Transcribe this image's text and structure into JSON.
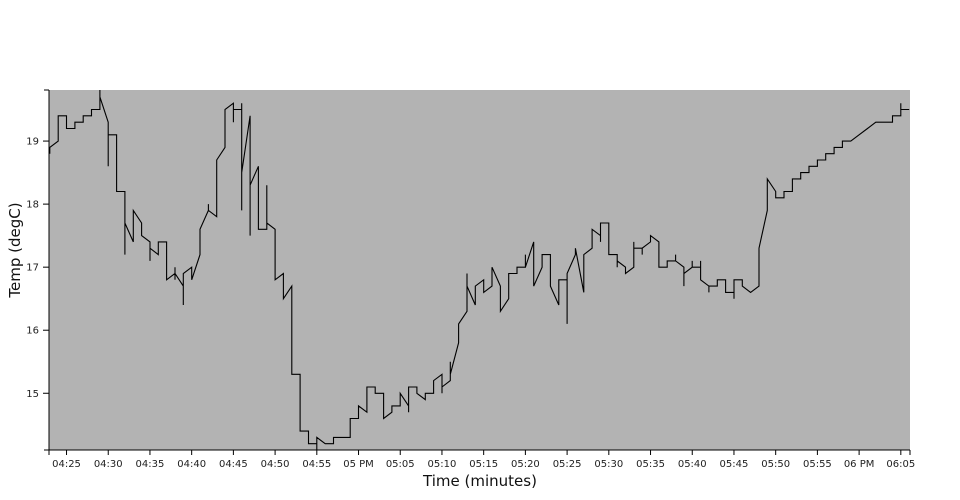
{
  "chart_data": {
    "type": "line",
    "title": "",
    "xlabel": "Time (minutes)",
    "ylabel": "Temp (degC)",
    "xlim": [
      "04:22:54",
      "06:06:06"
    ],
    "ylim": [
      14.1,
      19.81
    ],
    "grid": false,
    "legend": "none",
    "colors": {
      "plot_background": "#b3b3b3",
      "line": "#000000",
      "axis": "#000000"
    },
    "x_ticks": [
      {
        "t": "04:25",
        "label": "04:25"
      },
      {
        "t": "04:30",
        "label": "04:30"
      },
      {
        "t": "04:35",
        "label": "04:35"
      },
      {
        "t": "04:40",
        "label": "04:40"
      },
      {
        "t": "04:45",
        "label": "04:45"
      },
      {
        "t": "04:50",
        "label": "04:50"
      },
      {
        "t": "04:55",
        "label": "04:55"
      },
      {
        "t": "05:00",
        "label": "05 PM"
      },
      {
        "t": "05:05",
        "label": "05:05"
      },
      {
        "t": "05:10",
        "label": "05:10"
      },
      {
        "t": "05:15",
        "label": "05:15"
      },
      {
        "t": "05:20",
        "label": "05:20"
      },
      {
        "t": "05:25",
        "label": "05:25"
      },
      {
        "t": "05:30",
        "label": "05:30"
      },
      {
        "t": "05:35",
        "label": "05:35"
      },
      {
        "t": "05:40",
        "label": "05:40"
      },
      {
        "t": "05:45",
        "label": "05:45"
      },
      {
        "t": "05:50",
        "label": "05:50"
      },
      {
        "t": "05:55",
        "label": "05:55"
      },
      {
        "t": "06:00",
        "label": "06 PM"
      },
      {
        "t": "06:05",
        "label": "06:05"
      }
    ],
    "y_ticks": [
      {
        "v": 15,
        "label": "15"
      },
      {
        "v": 16,
        "label": "16"
      },
      {
        "v": 17,
        "label": "17"
      },
      {
        "v": 18,
        "label": "18"
      },
      {
        "v": 19,
        "label": "19"
      }
    ],
    "series": [
      {
        "points": [
          [
            "04:23",
            18.8
          ],
          [
            "04:23",
            18.9
          ],
          [
            "04:24",
            19.0
          ],
          [
            "04:24",
            19.4
          ],
          [
            "04:25",
            19.4
          ],
          [
            "04:25",
            19.2
          ],
          [
            "04:26",
            19.2
          ],
          [
            "04:26",
            19.3
          ],
          [
            "04:27",
            19.3
          ],
          [
            "04:27",
            19.4
          ],
          [
            "04:28",
            19.4
          ],
          [
            "04:28",
            19.5
          ],
          [
            "04:29",
            19.5
          ],
          [
            "04:29",
            19.81
          ],
          [
            "04:29",
            19.7
          ],
          [
            "04:30",
            19.3
          ],
          [
            "04:30",
            18.6
          ],
          [
            "04:30",
            19.1
          ],
          [
            "04:31",
            19.1
          ],
          [
            "04:31",
            18.2
          ],
          [
            "04:32",
            18.2
          ],
          [
            "04:32",
            17.2
          ],
          [
            "04:32",
            17.7
          ],
          [
            "04:33",
            17.4
          ],
          [
            "04:33",
            17.9
          ],
          [
            "04:34",
            17.7
          ],
          [
            "04:34",
            17.5
          ],
          [
            "04:35",
            17.4
          ],
          [
            "04:35",
            17.1
          ],
          [
            "04:35",
            17.3
          ],
          [
            "04:36",
            17.2
          ],
          [
            "04:36",
            17.4
          ],
          [
            "04:37",
            17.4
          ],
          [
            "04:37",
            16.8
          ],
          [
            "04:38",
            16.9
          ],
          [
            "04:38",
            17.0
          ],
          [
            "04:38",
            16.8
          ],
          [
            "04:38",
            16.9
          ],
          [
            "04:39",
            16.7
          ],
          [
            "04:39",
            16.4
          ],
          [
            "04:39",
            16.9
          ],
          [
            "04:40",
            17.0
          ],
          [
            "04:40",
            16.8
          ],
          [
            "04:41",
            17.2
          ],
          [
            "04:41",
            17.6
          ],
          [
            "04:42",
            17.9
          ],
          [
            "04:42",
            18.0
          ],
          [
            "04:42",
            17.9
          ],
          [
            "04:43",
            17.8
          ],
          [
            "04:43",
            18.7
          ],
          [
            "04:44",
            18.9
          ],
          [
            "04:44",
            19.5
          ],
          [
            "04:45",
            19.6
          ],
          [
            "04:45",
            19.3
          ],
          [
            "04:45",
            19.5
          ],
          [
            "04:46",
            19.5
          ],
          [
            "04:46",
            19.6
          ],
          [
            "04:46",
            17.9
          ],
          [
            "04:46",
            18.5
          ],
          [
            "04:47",
            19.4
          ],
          [
            "04:47",
            17.5
          ],
          [
            "04:47",
            18.3
          ],
          [
            "04:48",
            18.6
          ],
          [
            "04:48",
            17.6
          ],
          [
            "04:49",
            17.6
          ],
          [
            "04:49",
            18.3
          ],
          [
            "04:49",
            17.7
          ],
          [
            "04:50",
            17.6
          ],
          [
            "04:50",
            16.8
          ],
          [
            "04:51",
            16.9
          ],
          [
            "04:51",
            16.5
          ],
          [
            "04:52",
            16.7
          ],
          [
            "04:52",
            15.3
          ],
          [
            "04:53",
            15.3
          ],
          [
            "04:53",
            14.4
          ],
          [
            "04:54",
            14.4
          ],
          [
            "04:54",
            14.2
          ],
          [
            "04:55",
            14.2
          ],
          [
            "04:55",
            14.1
          ],
          [
            "04:55",
            14.3
          ],
          [
            "04:56",
            14.2
          ],
          [
            "04:57",
            14.2
          ],
          [
            "04:57",
            14.3
          ],
          [
            "04:59",
            14.3
          ],
          [
            "04:59",
            14.6
          ],
          [
            "05:00",
            14.6
          ],
          [
            "05:00",
            14.8
          ],
          [
            "05:01",
            14.7
          ],
          [
            "05:01",
            15.1
          ],
          [
            "05:02",
            15.1
          ],
          [
            "05:02",
            15.0
          ],
          [
            "05:03",
            15.0
          ],
          [
            "05:03",
            14.6
          ],
          [
            "05:04",
            14.7
          ],
          [
            "05:04",
            14.8
          ],
          [
            "05:05",
            14.8
          ],
          [
            "05:05",
            15.0
          ],
          [
            "05:06",
            14.8
          ],
          [
            "05:06",
            14.7
          ],
          [
            "05:06",
            15.1
          ],
          [
            "05:07",
            15.1
          ],
          [
            "05:07",
            15.0
          ],
          [
            "05:08",
            14.9
          ],
          [
            "05:08",
            15.0
          ],
          [
            "05:09",
            15.0
          ],
          [
            "05:09",
            15.2
          ],
          [
            "05:10",
            15.3
          ],
          [
            "05:10",
            15.0
          ],
          [
            "05:10",
            15.1
          ],
          [
            "05:11",
            15.2
          ],
          [
            "05:11",
            15.5
          ],
          [
            "05:11",
            15.3
          ],
          [
            "05:12",
            15.8
          ],
          [
            "05:12",
            16.1
          ],
          [
            "05:13",
            16.3
          ],
          [
            "05:13",
            16.9
          ],
          [
            "05:13",
            16.7
          ],
          [
            "05:14",
            16.4
          ],
          [
            "05:14",
            16.7
          ],
          [
            "05:15",
            16.8
          ],
          [
            "05:15",
            16.6
          ],
          [
            "05:16",
            16.7
          ],
          [
            "05:16",
            17.0
          ],
          [
            "05:17",
            16.7
          ],
          [
            "05:17",
            16.3
          ],
          [
            "05:18",
            16.5
          ],
          [
            "05:18",
            16.9
          ],
          [
            "05:19",
            16.9
          ],
          [
            "05:19",
            17.0
          ],
          [
            "05:20",
            17.0
          ],
          [
            "05:20",
            17.2
          ],
          [
            "05:20",
            17.0
          ],
          [
            "05:21",
            17.4
          ],
          [
            "05:21",
            16.7
          ],
          [
            "05:22",
            17.0
          ],
          [
            "05:22",
            17.2
          ],
          [
            "05:23",
            17.2
          ],
          [
            "05:23",
            16.7
          ],
          [
            "05:24",
            16.4
          ],
          [
            "05:24",
            16.8
          ],
          [
            "05:25",
            16.8
          ],
          [
            "05:25",
            16.1
          ],
          [
            "05:25",
            16.9
          ],
          [
            "05:26",
            17.2
          ],
          [
            "05:26",
            17.3
          ],
          [
            "05:27",
            16.6
          ],
          [
            "05:27",
            17.2
          ],
          [
            "05:28",
            17.3
          ],
          [
            "05:28",
            17.6
          ],
          [
            "05:29",
            17.5
          ],
          [
            "05:29",
            17.4
          ],
          [
            "05:29",
            17.7
          ],
          [
            "05:30",
            17.7
          ],
          [
            "05:30",
            17.2
          ],
          [
            "05:31",
            17.2
          ],
          [
            "05:31",
            17.0
          ],
          [
            "05:31",
            17.1
          ],
          [
            "05:32",
            17.0
          ],
          [
            "05:32",
            16.9
          ],
          [
            "05:33",
            17.0
          ],
          [
            "05:33",
            17.4
          ],
          [
            "05:33",
            17.3
          ],
          [
            "05:34",
            17.3
          ],
          [
            "05:34",
            17.2
          ],
          [
            "05:34",
            17.3
          ],
          [
            "05:35",
            17.4
          ],
          [
            "05:35",
            17.5
          ],
          [
            "05:36",
            17.4
          ],
          [
            "05:36",
            17.0
          ],
          [
            "05:37",
            17.0
          ],
          [
            "05:37",
            17.1
          ],
          [
            "05:38",
            17.1
          ],
          [
            "05:38",
            17.2
          ],
          [
            "05:38",
            17.1
          ],
          [
            "05:39",
            17.0
          ],
          [
            "05:39",
            16.7
          ],
          [
            "05:39",
            16.9
          ],
          [
            "05:40",
            17.0
          ],
          [
            "05:40",
            17.1
          ],
          [
            "05:40",
            17.0
          ],
          [
            "05:41",
            17.0
          ],
          [
            "05:41",
            17.1
          ],
          [
            "05:41",
            16.8
          ],
          [
            "05:42",
            16.7
          ],
          [
            "05:42",
            16.6
          ],
          [
            "05:42",
            16.7
          ],
          [
            "05:43",
            16.7
          ],
          [
            "05:43",
            16.8
          ],
          [
            "05:44",
            16.8
          ],
          [
            "05:44",
            16.6
          ],
          [
            "05:45",
            16.6
          ],
          [
            "05:45",
            16.5
          ],
          [
            "05:45",
            16.8
          ],
          [
            "05:46",
            16.8
          ],
          [
            "05:46",
            16.7
          ],
          [
            "05:47",
            16.6
          ],
          [
            "05:48",
            16.7
          ],
          [
            "05:48",
            17.3
          ],
          [
            "05:49",
            17.9
          ],
          [
            "05:49",
            18.4
          ],
          [
            "05:50",
            18.2
          ],
          [
            "05:50",
            18.1
          ],
          [
            "05:51",
            18.1
          ],
          [
            "05:51",
            18.2
          ],
          [
            "05:52",
            18.2
          ],
          [
            "05:52",
            18.4
          ],
          [
            "05:53",
            18.4
          ],
          [
            "05:53",
            18.5
          ],
          [
            "05:54",
            18.5
          ],
          [
            "05:54",
            18.6
          ],
          [
            "05:55",
            18.6
          ],
          [
            "05:55",
            18.7
          ],
          [
            "05:56",
            18.7
          ],
          [
            "05:56",
            18.8
          ],
          [
            "05:57",
            18.8
          ],
          [
            "05:57",
            18.9
          ],
          [
            "05:58",
            18.9
          ],
          [
            "05:58",
            19.0
          ],
          [
            "05:59",
            19.0
          ],
          [
            "06:00",
            19.1
          ],
          [
            "06:01",
            19.2
          ],
          [
            "06:02",
            19.3
          ],
          [
            "06:04",
            19.3
          ],
          [
            "06:04",
            19.4
          ],
          [
            "06:05",
            19.4
          ],
          [
            "06:05",
            19.6
          ],
          [
            "06:05",
            19.5
          ],
          [
            "06:06",
            19.5
          ]
        ]
      }
    ]
  }
}
